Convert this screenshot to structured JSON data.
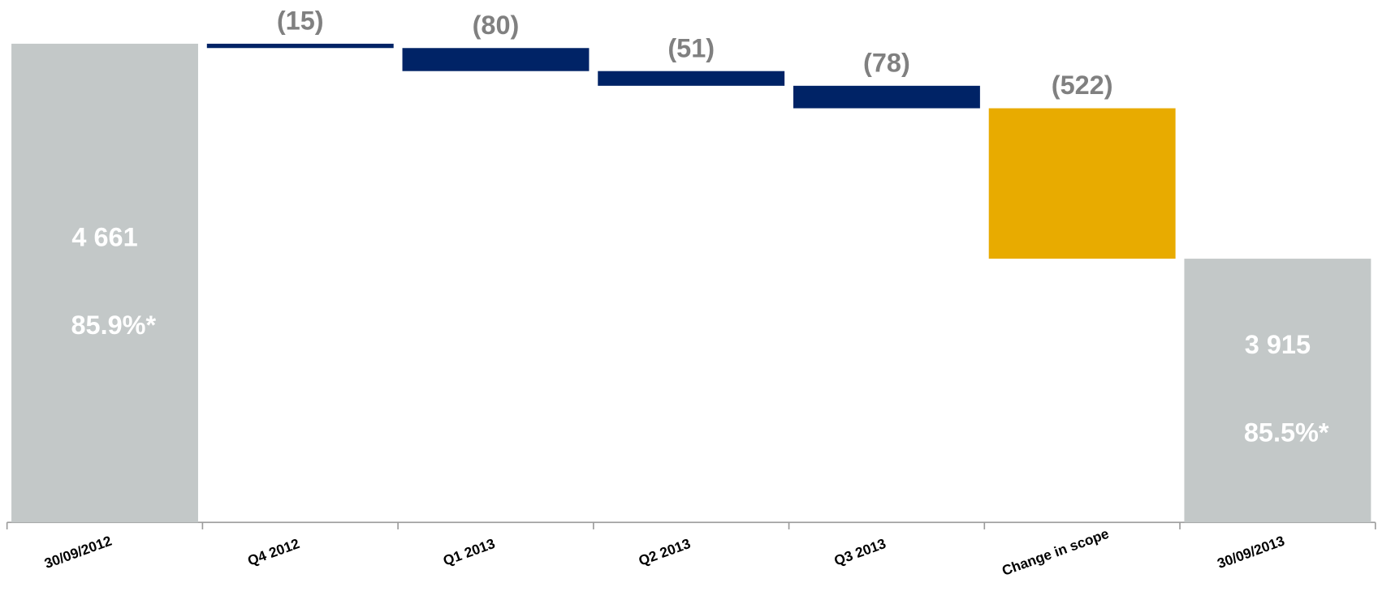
{
  "chart_data": {
    "type": "waterfall",
    "categories": [
      "30/09/2012",
      "Q4 2012",
      "Q1 2013",
      "Q2 2013",
      "Q3 2013",
      "Change in scope",
      "30/09/2013"
    ],
    "values": [
      4661,
      -15,
      -80,
      -51,
      -78,
      -522,
      3915
    ],
    "value_labels": [
      "4 661",
      "(15)",
      "(80)",
      "(51)",
      "(78)",
      "(522)",
      "3 915"
    ],
    "share_labels": [
      "85.9%*",
      null,
      null,
      null,
      null,
      null,
      "85.5%*"
    ],
    "measure": [
      "total",
      "relative",
      "relative",
      "relative",
      "relative",
      "relative",
      "total"
    ],
    "colors": [
      "#c3c8c8",
      "#002366",
      "#002366",
      "#002366",
      "#002366",
      "#e8ab00",
      "#c3c8c8"
    ],
    "ylim": [
      3000,
      4700
    ]
  }
}
